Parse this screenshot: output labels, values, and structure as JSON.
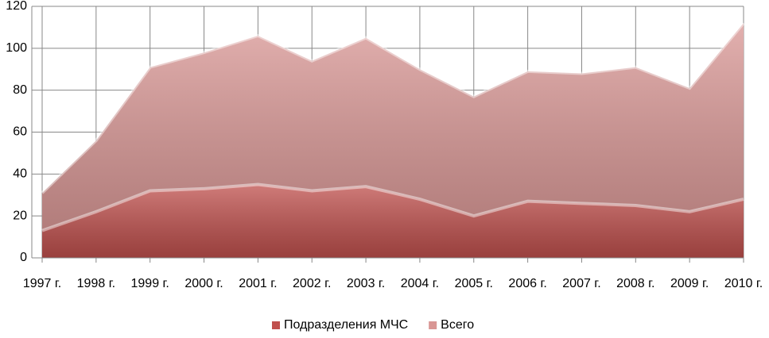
{
  "chart_data": {
    "type": "area",
    "categories": [
      "1997 г.",
      "1998 г.",
      "1999 г.",
      "2000 г.",
      "2001 г.",
      "2002 г.",
      "2003 г.",
      "2004 г.",
      "2005 г.",
      "2006 г.",
      "2007 г.",
      "2008 г.",
      "2009 г.",
      "2010 г."
    ],
    "series": [
      {
        "name": "Подразделения МЧС",
        "color": "#c0504d",
        "values": [
          13,
          22,
          32,
          33,
          35,
          32,
          34,
          28,
          20,
          27,
          26,
          25,
          22,
          28
        ]
      },
      {
        "name": "Всего",
        "color": "#d99694",
        "values": [
          31,
          56,
          91,
          98,
          106,
          94,
          105,
          90,
          77,
          89,
          88,
          91,
          81,
          112
        ]
      }
    ],
    "ylim": [
      0,
      120
    ],
    "yticks": [
      0,
      20,
      40,
      60,
      80,
      100,
      120
    ],
    "grid": true,
    "legend": "bottom"
  }
}
